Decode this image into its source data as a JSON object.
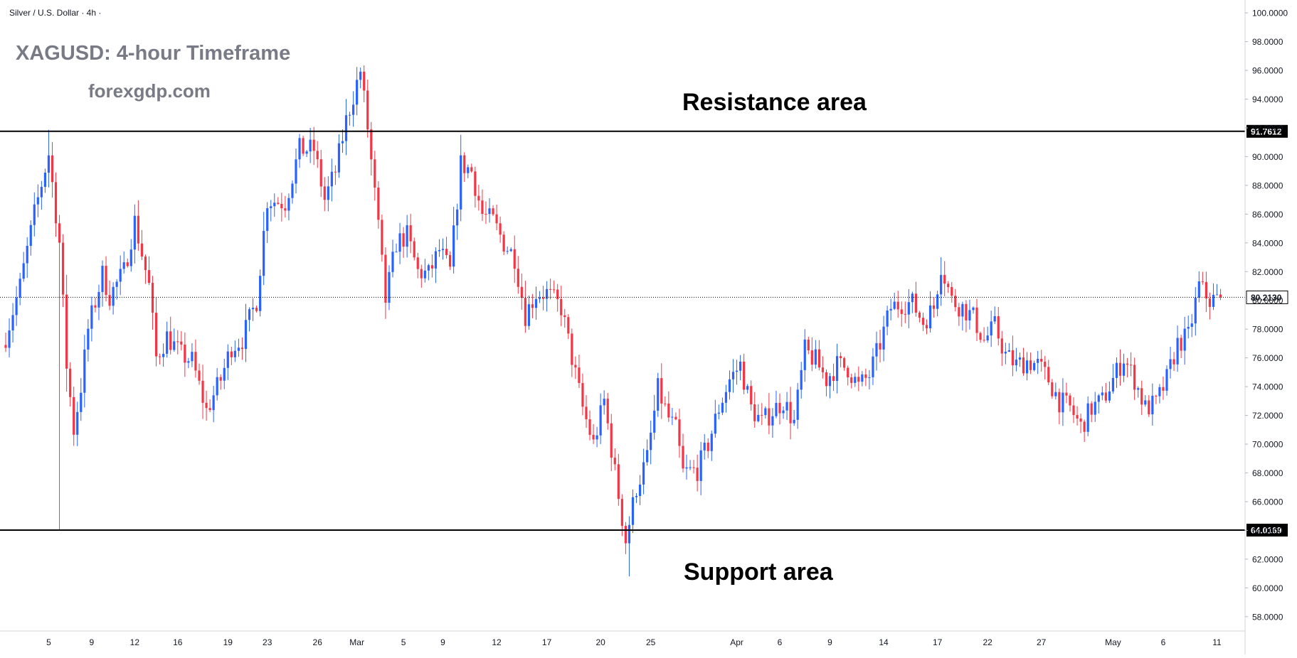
{
  "chart_data": {
    "type": "candlestick",
    "symbol_header": "Silver / U.S. Dollar · 4h ·",
    "overlay_title": "XAGUSD: 4-hour Timeframe",
    "watermark": "forexgdp.com",
    "ylim": [
      57,
      100.6
    ],
    "y_ticks": [
      58,
      60,
      62,
      64,
      66,
      68,
      70,
      72,
      74,
      76,
      78,
      80,
      82,
      84,
      86,
      88,
      90,
      92,
      94,
      96,
      98,
      100
    ],
    "y_tick_labels": [
      "58.0000",
      "60.0000",
      "62.0000",
      "64.0000",
      "66.0000",
      "68.0000",
      "70.0000",
      "72.0000",
      "74.0000",
      "76.0000",
      "78.0000",
      "80.0000",
      "82.0000",
      "84.0000",
      "86.0000",
      "88.0000",
      "90.0000",
      "92.0000",
      "94.0000",
      "96.0000",
      "98.0000",
      "100.0000"
    ],
    "x_ticks": [
      {
        "label": "5",
        "bar": 12
      },
      {
        "label": "9",
        "bar": 24
      },
      {
        "label": "12",
        "bar": 36
      },
      {
        "label": "16",
        "bar": 48
      },
      {
        "label": "19",
        "bar": 62
      },
      {
        "label": "23",
        "bar": 73
      },
      {
        "label": "26",
        "bar": 87
      },
      {
        "label": "Mar",
        "bar": 98
      },
      {
        "label": "5",
        "bar": 111
      },
      {
        "label": "9",
        "bar": 122
      },
      {
        "label": "12",
        "bar": 137
      },
      {
        "label": "17",
        "bar": 151
      },
      {
        "label": "20",
        "bar": 166
      },
      {
        "label": "25",
        "bar": 180
      },
      {
        "label": "Apr",
        "bar": 204
      },
      {
        "label": "6",
        "bar": 216
      },
      {
        "label": "9",
        "bar": 230
      },
      {
        "label": "14",
        "bar": 245
      },
      {
        "label": "17",
        "bar": 260
      },
      {
        "label": "22",
        "bar": 274
      },
      {
        "label": "27",
        "bar": 289
      },
      {
        "label": "May",
        "bar": 309
      },
      {
        "label": "6",
        "bar": 323
      },
      {
        "label": "11",
        "bar": 338
      }
    ],
    "levels": [
      {
        "name": "Resistance area",
        "value": 91.7612,
        "label": "91.7612"
      },
      {
        "name": "Support area",
        "value": 64.0169,
        "label": "64.0169"
      }
    ],
    "last_price": {
      "value": 80.213,
      "label": "80.2130"
    },
    "up_color": "#2962ff",
    "down_color": "#f23645",
    "waypoints": [
      [
        0,
        77.5
      ],
      [
        4,
        81
      ],
      [
        8,
        86
      ],
      [
        12,
        90.2
      ],
      [
        15,
        84
      ],
      [
        17,
        75.5
      ],
      [
        19,
        71
      ],
      [
        21,
        74
      ],
      [
        23,
        78
      ],
      [
        27,
        81.8
      ],
      [
        29,
        80.3
      ],
      [
        33,
        82
      ],
      [
        36,
        85.5
      ],
      [
        40,
        81
      ],
      [
        42,
        76
      ],
      [
        45,
        77.5
      ],
      [
        49,
        76.2
      ],
      [
        52,
        75.8
      ],
      [
        56,
        72.3
      ],
      [
        60,
        74.5
      ],
      [
        63,
        76.8
      ],
      [
        66,
        77.3
      ],
      [
        70,
        80
      ],
      [
        73,
        87
      ],
      [
        78,
        86.8
      ],
      [
        82,
        90.5
      ],
      [
        86,
        90.5
      ],
      [
        89,
        87
      ],
      [
        92,
        89
      ],
      [
        95,
        92.5
      ],
      [
        99,
        96
      ],
      [
        101,
        92
      ],
      [
        104,
        85
      ],
      [
        106,
        80
      ],
      [
        109,
        84
      ],
      [
        112,
        84.5
      ],
      [
        115,
        82
      ],
      [
        118,
        81.8
      ],
      [
        121,
        83.5
      ],
      [
        124,
        82
      ],
      [
        127,
        89.5
      ],
      [
        130,
        89
      ],
      [
        133,
        86
      ],
      [
        136,
        85.5
      ],
      [
        139,
        84
      ],
      [
        142,
        83
      ],
      [
        145,
        79
      ],
      [
        148,
        80.5
      ],
      [
        151,
        80.5
      ],
      [
        155,
        79.5
      ],
      [
        158,
        76
      ],
      [
        161,
        72.5
      ],
      [
        164,
        70
      ],
      [
        167,
        73
      ],
      [
        170,
        68
      ],
      [
        173,
        63.3
      ],
      [
        176,
        67
      ],
      [
        179,
        69
      ],
      [
        182,
        73.8
      ],
      [
        185,
        71.8
      ],
      [
        187,
        71
      ],
      [
        189,
        68
      ],
      [
        193,
        68.2
      ],
      [
        196,
        70
      ],
      [
        199,
        72.5
      ],
      [
        202,
        74.5
      ],
      [
        205,
        75.5
      ],
      [
        208,
        72.5
      ],
      [
        211,
        71.5
      ],
      [
        214,
        72.3
      ],
      [
        217,
        73
      ],
      [
        220,
        71.5
      ],
      [
        223,
        76.5
      ],
      [
        226,
        75.8
      ],
      [
        229,
        74.5
      ],
      [
        232,
        75.5
      ],
      [
        235,
        75.3
      ],
      [
        238,
        74
      ],
      [
        241,
        74.8
      ],
      [
        244,
        77
      ],
      [
        247,
        79.5
      ],
      [
        250,
        79.8
      ],
      [
        253,
        79.8
      ],
      [
        256,
        78.5
      ],
      [
        259,
        79.5
      ],
      [
        261,
        82.5
      ],
      [
        264,
        80
      ],
      [
        267,
        79.5
      ],
      [
        270,
        78.8
      ],
      [
        273,
        77.2
      ],
      [
        276,
        78.2
      ],
      [
        279,
        76.2
      ],
      [
        282,
        75.5
      ],
      [
        285,
        75.8
      ],
      [
        288,
        75.5
      ],
      [
        291,
        74.5
      ],
      [
        294,
        73
      ],
      [
        297,
        72.5
      ],
      [
        300,
        71.2
      ],
      [
        303,
        72.5
      ],
      [
        306,
        73
      ],
      [
        309,
        74.5
      ],
      [
        312,
        76
      ],
      [
        315,
        74.5
      ],
      [
        318,
        72.5
      ],
      [
        321,
        72.8
      ],
      [
        324,
        74.5
      ],
      [
        327,
        77
      ],
      [
        330,
        77.5
      ],
      [
        333,
        81
      ],
      [
        336,
        80
      ],
      [
        339,
        80.2
      ]
    ]
  }
}
